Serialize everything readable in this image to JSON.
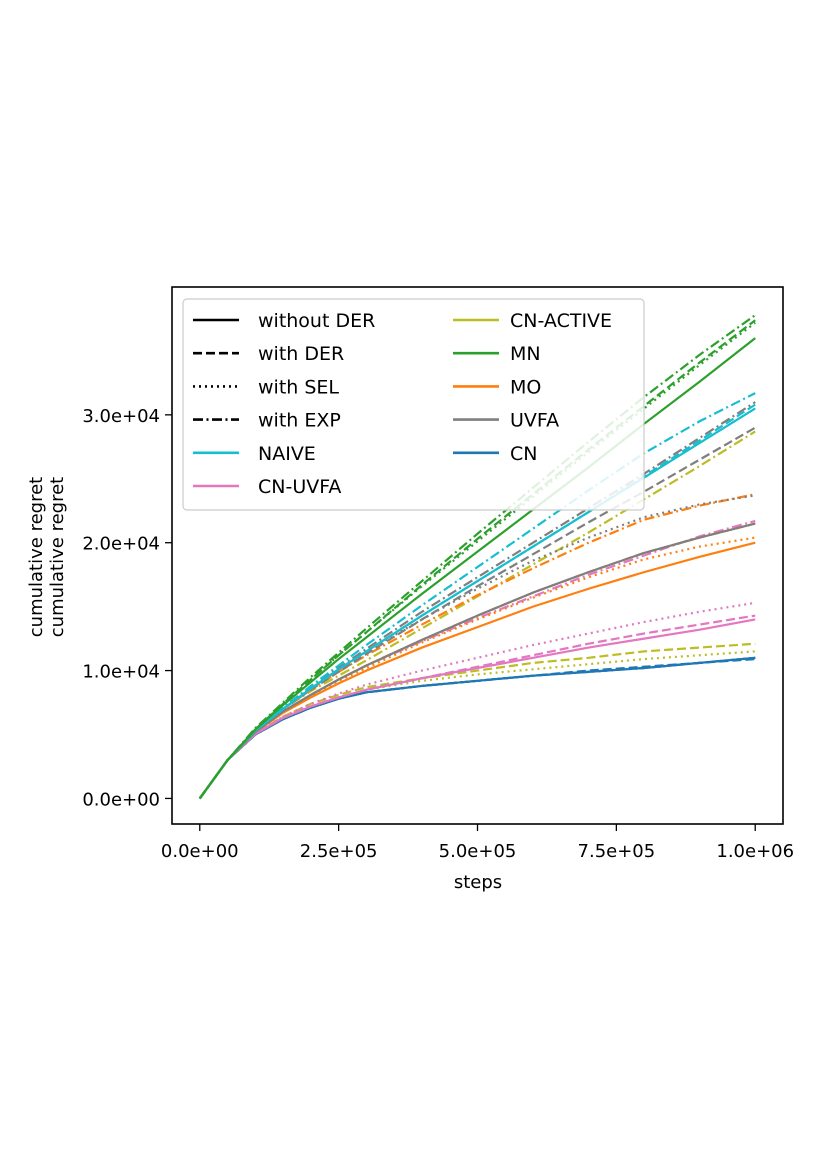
{
  "chart_data": {
    "type": "line",
    "title": "",
    "xlabel": "steps",
    "ylabel_lines": [
      "cumulative regret",
      "cumulative regret"
    ],
    "xlim": [
      -50000,
      1050000
    ],
    "ylim": [
      -2000,
      40000
    ],
    "xticks": [
      0,
      250000,
      500000,
      750000,
      1000000
    ],
    "xtick_labels": [
      "0.0e+00",
      "2.5e+05",
      "5.0e+05",
      "7.5e+05",
      "1.0e+06"
    ],
    "yticks": [
      0,
      10000,
      20000,
      30000
    ],
    "ytick_labels": [
      "0.0e+00",
      "1.0e+04",
      "2.0e+04",
      "3.0e+04"
    ],
    "legend_position": "top-left",
    "style_legend": [
      {
        "label": "without DER",
        "dash": "solid"
      },
      {
        "label": "with DER",
        "dash": "dashed"
      },
      {
        "label": "with SEL",
        "dash": "dotted"
      },
      {
        "label": "with EXP",
        "dash": "dashdot"
      }
    ],
    "method_legend": [
      {
        "label": "NAIVE",
        "color": "#17becf"
      },
      {
        "label": "CN-UVFA",
        "color": "#e377c2"
      },
      {
        "label": "CN-ACTIVE",
        "color": "#bcbd22"
      },
      {
        "label": "MN",
        "color": "#2ca02c"
      },
      {
        "label": "MO",
        "color": "#ff7f0e"
      },
      {
        "label": "UVFA",
        "color": "#7f7f7f"
      },
      {
        "label": "CN",
        "color": "#1f77b4"
      }
    ],
    "x": [
      0,
      50000,
      100000,
      150000,
      200000,
      250000,
      300000,
      400000,
      500000,
      600000,
      700000,
      800000,
      900000,
      1000000
    ],
    "series": [
      {
        "method": "CN",
        "variant": "without DER",
        "color": "#1f77b4",
        "dash": "solid",
        "values": [
          0,
          3000,
          5000,
          6200,
          7100,
          7800,
          8300,
          8800,
          9200,
          9600,
          9900,
          10200,
          10600,
          11000
        ]
      },
      {
        "method": "CN",
        "variant": "with DER",
        "color": "#1f77b4",
        "dash": "dashed",
        "values": [
          0,
          3000,
          5000,
          6200,
          7100,
          7800,
          8300,
          8800,
          9200,
          9600,
          10000,
          10300,
          10600,
          10900
        ]
      },
      {
        "method": "CN",
        "variant": "with SEL",
        "color": "#1f77b4",
        "dash": "dotted",
        "values": [
          0,
          3000,
          5000,
          6200,
          7100,
          7800,
          8300,
          8800,
          9200,
          9600,
          9900,
          10200,
          10600,
          11000
        ]
      },
      {
        "method": "CN",
        "variant": "with EXP",
        "color": "#1f77b4",
        "dash": "dashdot",
        "values": [
          0,
          3000,
          5000,
          6200,
          7100,
          7800,
          8300,
          8800,
          9200,
          9600,
          9900,
          10200,
          10600,
          11000
        ]
      },
      {
        "method": "CN-ACTIVE",
        "variant": "with DER",
        "color": "#bcbd22",
        "dash": "dashed",
        "values": [
          0,
          3000,
          5100,
          6400,
          7400,
          8100,
          8700,
          9400,
          10000,
          10600,
          11000,
          11500,
          11800,
          12100
        ]
      },
      {
        "method": "CN-ACTIVE",
        "variant": "with SEL",
        "color": "#bcbd22",
        "dash": "dotted",
        "values": [
          0,
          3000,
          5050,
          6300,
          7200,
          7900,
          8500,
          9200,
          9700,
          10100,
          10500,
          10900,
          11200,
          11500
        ]
      },
      {
        "method": "CN-ACTIVE",
        "variant": "with EXP",
        "color": "#bcbd22",
        "dash": "dashdot",
        "values": [
          0,
          3000,
          5300,
          7000,
          8400,
          9600,
          10800,
          13300,
          15800,
          18300,
          20800,
          23400,
          26000,
          28700
        ]
      },
      {
        "method": "CN-UVFA",
        "variant": "without DER",
        "color": "#e377c2",
        "dash": "solid",
        "values": [
          0,
          3000,
          5050,
          6300,
          7200,
          7900,
          8500,
          9400,
          10200,
          11000,
          11800,
          12500,
          13200,
          14000
        ]
      },
      {
        "method": "CN-UVFA",
        "variant": "with DER",
        "color": "#e377c2",
        "dash": "dashed",
        "values": [
          0,
          3000,
          5050,
          6300,
          7200,
          7900,
          8500,
          9400,
          10300,
          11200,
          12100,
          12900,
          13600,
          14300
        ]
      },
      {
        "method": "CN-UVFA",
        "variant": "with SEL",
        "color": "#e377c2",
        "dash": "dotted",
        "values": [
          0,
          3000,
          5100,
          6400,
          7400,
          8200,
          8900,
          10000,
          11000,
          12000,
          12900,
          13800,
          14600,
          15300
        ]
      },
      {
        "method": "CN-UVFA",
        "variant": "with EXP",
        "color": "#e377c2",
        "dash": "dashdot",
        "values": [
          0,
          3000,
          5300,
          6800,
          8100,
          9300,
          10400,
          12300,
          14100,
          15800,
          17500,
          19000,
          20500,
          21700
        ]
      },
      {
        "method": "MO",
        "variant": "without DER",
        "color": "#ff7f0e",
        "dash": "solid",
        "values": [
          0,
          3000,
          5200,
          6700,
          7900,
          9000,
          10000,
          11800,
          13400,
          15000,
          16400,
          17700,
          18900,
          20000
        ]
      },
      {
        "method": "MO",
        "variant": "with DER",
        "color": "#ff7f0e",
        "dash": "dashed",
        "values": [
          0,
          3000,
          5200,
          6800,
          8100,
          9300,
          10400,
          12400,
          14300,
          16100,
          17700,
          19200,
          20400,
          21500
        ]
      },
      {
        "method": "MO",
        "variant": "with SEL",
        "color": "#ff7f0e",
        "dash": "dotted",
        "values": [
          0,
          3000,
          5200,
          6700,
          8000,
          9200,
          10200,
          12200,
          14000,
          15700,
          17300,
          18700,
          19700,
          20400
        ]
      },
      {
        "method": "MO",
        "variant": "with EXP",
        "color": "#ff7f0e",
        "dash": "dashdot",
        "values": [
          0,
          3000,
          5300,
          7000,
          8500,
          9900,
          11200,
          13600,
          15900,
          18000,
          20000,
          21800,
          22900,
          23800
        ]
      },
      {
        "method": "UVFA",
        "variant": "without DER",
        "color": "#7f7f7f",
        "dash": "solid",
        "values": [
          0,
          3000,
          5200,
          6800,
          8100,
          9300,
          10400,
          12400,
          14300,
          16100,
          17700,
          19200,
          20400,
          21500
        ]
      },
      {
        "method": "UVFA",
        "variant": "with DER",
        "color": "#7f7f7f",
        "dash": "dashed",
        "values": [
          0,
          3000,
          5300,
          7000,
          8500,
          9900,
          11300,
          14000,
          16600,
          19100,
          21600,
          24000,
          26500,
          29000
        ]
      },
      {
        "method": "UVFA",
        "variant": "with SEL",
        "color": "#7f7f7f",
        "dash": "dotted",
        "values": [
          0,
          3000,
          5300,
          7000,
          8600,
          10100,
          11500,
          14000,
          16400,
          18600,
          20400,
          22000,
          23000,
          23700
        ]
      },
      {
        "method": "UVFA",
        "variant": "with EXP",
        "color": "#7f7f7f",
        "dash": "dashdot",
        "values": [
          0,
          3000,
          5300,
          7100,
          8700,
          10200,
          11700,
          14600,
          17300,
          20000,
          22700,
          25400,
          28200,
          31000
        ]
      },
      {
        "method": "NAIVE",
        "variant": "without DER",
        "color": "#17becf",
        "dash": "solid",
        "values": [
          0,
          3000,
          5300,
          7000,
          8600,
          10100,
          11500,
          14300,
          17000,
          19700,
          22400,
          25100,
          27800,
          30500
        ]
      },
      {
        "method": "NAIVE",
        "variant": "with DER",
        "color": "#17becf",
        "dash": "dashed",
        "values": [
          0,
          3000,
          5300,
          7000,
          8600,
          10100,
          11500,
          14300,
          17000,
          19700,
          22400,
          25200,
          28000,
          30800
        ]
      },
      {
        "method": "NAIVE",
        "variant": "with EXP",
        "color": "#17becf",
        "dash": "dashdot",
        "values": [
          0,
          3000,
          5300,
          7100,
          8800,
          10400,
          12000,
          15100,
          18100,
          21100,
          24100,
          27000,
          29500,
          31700
        ]
      },
      {
        "method": "MN",
        "variant": "without DER",
        "color": "#2ca02c",
        "dash": "solid",
        "values": [
          0,
          3000,
          5400,
          7300,
          9100,
          10900,
          12600,
          16000,
          19300,
          22600,
          25900,
          29300,
          32600,
          36000
        ]
      },
      {
        "method": "MN",
        "variant": "with DER",
        "color": "#2ca02c",
        "dash": "dashed",
        "values": [
          0,
          3000,
          5400,
          7400,
          9300,
          11200,
          13000,
          16700,
          20300,
          23800,
          27300,
          30700,
          34100,
          37400
        ]
      },
      {
        "method": "MN",
        "variant": "with SEL",
        "color": "#2ca02c",
        "dash": "dotted",
        "values": [
          0,
          3000,
          5400,
          7400,
          9300,
          11200,
          13000,
          16600,
          20100,
          23600,
          27100,
          30500,
          33900,
          37200
        ]
      },
      {
        "method": "MN",
        "variant": "with EXP",
        "color": "#2ca02c",
        "dash": "dashdot",
        "values": [
          0,
          3000,
          5500,
          7500,
          9500,
          11400,
          13300,
          17000,
          20700,
          24300,
          27900,
          31400,
          34700,
          37800
        ]
      }
    ]
  }
}
